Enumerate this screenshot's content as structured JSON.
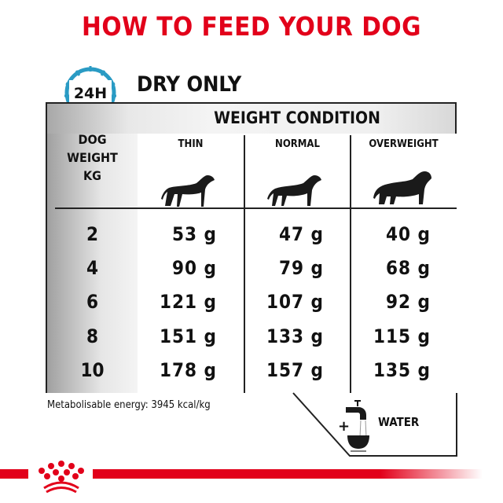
{
  "title": "HOW TO FEED YOUR DOG",
  "clock_label": "24H",
  "subtitle": "DRY ONLY",
  "table": {
    "group_header": "WEIGHT CONDITION",
    "row_header": [
      "DOG",
      "WEIGHT",
      "KG"
    ],
    "columns": [
      "THIN",
      "NORMAL",
      "OVERWEIGHT"
    ],
    "rows": [
      {
        "kg": "2",
        "thin": "53 g",
        "normal": "47 g",
        "overweight": "40 g"
      },
      {
        "kg": "4",
        "thin": "90 g",
        "normal": "79 g",
        "overweight": "68 g"
      },
      {
        "kg": "6",
        "thin": "121 g",
        "normal": "107 g",
        "overweight": "92 g"
      },
      {
        "kg": "8",
        "thin": "151 g",
        "normal": "133 g",
        "overweight": "115 g"
      },
      {
        "kg": "10",
        "thin": "178 g",
        "normal": "157 g",
        "overweight": "135 g"
      }
    ]
  },
  "energy": "Metabolisable energy: 3945 kcal/kg",
  "water": {
    "plus": "+",
    "label": "WATER"
  },
  "colors": {
    "brand_red": "#e2001a",
    "clock_blue": "#2a9bc4"
  }
}
